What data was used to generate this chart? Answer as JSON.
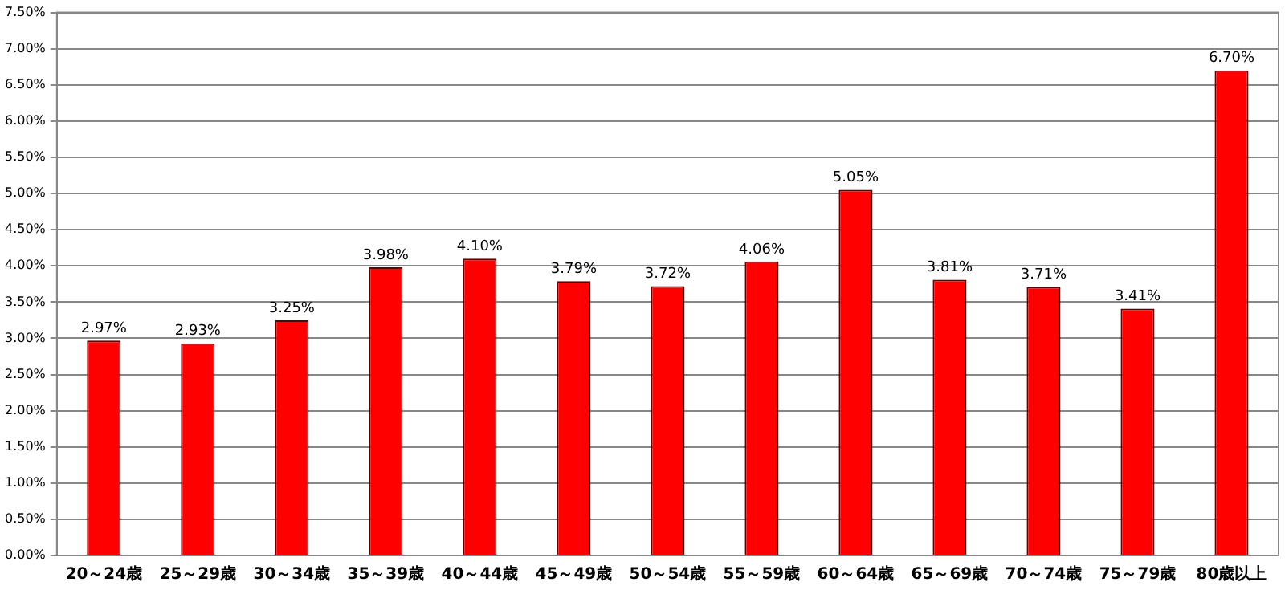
{
  "chart_data": {
    "type": "bar",
    "categories": [
      "20～24歳",
      "25～29歳",
      "30～34歳",
      "35～39歳",
      "40～44歳",
      "45～49歳",
      "50～54歳",
      "55～59歳",
      "60～64歳",
      "65～69歳",
      "70～74歳",
      "75～79歳",
      "80歳以上"
    ],
    "values": [
      2.97,
      2.93,
      3.25,
      3.98,
      4.1,
      3.79,
      3.72,
      4.06,
      5.05,
      3.81,
      3.71,
      3.41,
      6.7
    ],
    "value_labels": [
      "2.97%",
      "2.93%",
      "3.25%",
      "3.98%",
      "4.10%",
      "3.79%",
      "3.72%",
      "4.06%",
      "5.05%",
      "3.81%",
      "3.71%",
      "3.41%",
      "6.70%"
    ],
    "color": "#ff0000",
    "ylim": [
      0,
      7.5
    ],
    "yticks": [
      {
        "value": 0,
        "label": "0.00%"
      },
      {
        "value": 0.5,
        "label": "0.50%"
      },
      {
        "value": 1,
        "label": "1.00%"
      },
      {
        "value": 1.5,
        "label": "1.50%"
      },
      {
        "value": 2,
        "label": "2.00%"
      },
      {
        "value": 2.5,
        "label": "2.50%"
      },
      {
        "value": 3,
        "label": "3.00%"
      },
      {
        "value": 3.5,
        "label": "3.50%"
      },
      {
        "value": 4,
        "label": "4.00%"
      },
      {
        "value": 4.5,
        "label": "4.50%"
      },
      {
        "value": 5,
        "label": "5.00%"
      },
      {
        "value": 5.5,
        "label": "5.50%"
      },
      {
        "value": 6,
        "label": "6.00%"
      },
      {
        "value": 6.5,
        "label": "6.50%"
      },
      {
        "value": 7,
        "label": "7.00%"
      },
      {
        "value": 7.5,
        "label": "7.50%"
      }
    ],
    "grid": "y",
    "legend": false
  }
}
